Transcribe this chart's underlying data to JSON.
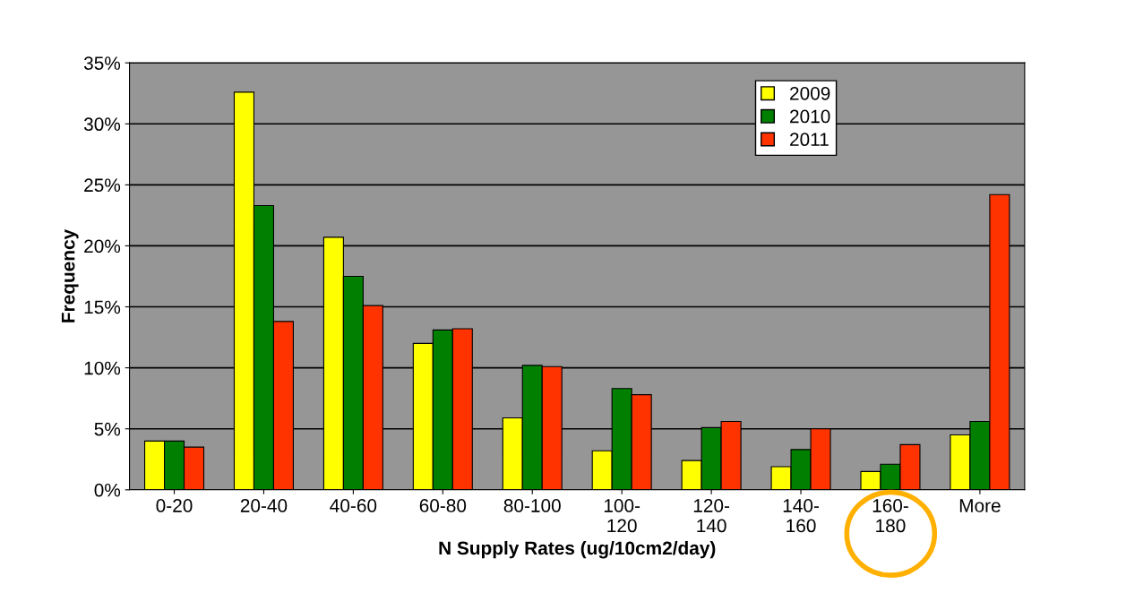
{
  "chart_data": {
    "type": "bar",
    "xlabel": "N Supply Rates (ug/10cm2/day)",
    "ylabel": "Frequency",
    "categories": [
      "0-20",
      "20-40",
      "40-60",
      "60-80",
      "80-100",
      "100-\n120",
      "120-\n140",
      "140-\n160",
      "160-\n180",
      "More"
    ],
    "series": [
      {
        "name": "2009",
        "color": "#ffff00",
        "values": [
          4.0,
          32.6,
          20.7,
          12.0,
          5.9,
          3.2,
          2.4,
          1.9,
          1.5,
          4.5
        ]
      },
      {
        "name": "2010",
        "color": "#007f00",
        "values": [
          4.0,
          23.3,
          17.5,
          13.1,
          10.2,
          8.3,
          5.1,
          3.3,
          2.1,
          5.6
        ]
      },
      {
        "name": "2011",
        "color": "#ff3300",
        "values": [
          3.5,
          13.8,
          15.1,
          13.2,
          10.1,
          7.8,
          5.6,
          5.0,
          3.7,
          24.2
        ]
      }
    ],
    "ylim": [
      0,
      35
    ],
    "yticks": [
      {
        "value": 0,
        "label": "0%"
      },
      {
        "value": 5,
        "label": "5%"
      },
      {
        "value": 10,
        "label": "10%"
      },
      {
        "value": 15,
        "label": "15%"
      },
      {
        "value": 20,
        "label": "20%"
      },
      {
        "value": 25,
        "label": "25%"
      },
      {
        "value": 30,
        "label": "30%"
      },
      {
        "value": 35,
        "label": "35%"
      }
    ],
    "grid": "y",
    "legend": "top right"
  }
}
